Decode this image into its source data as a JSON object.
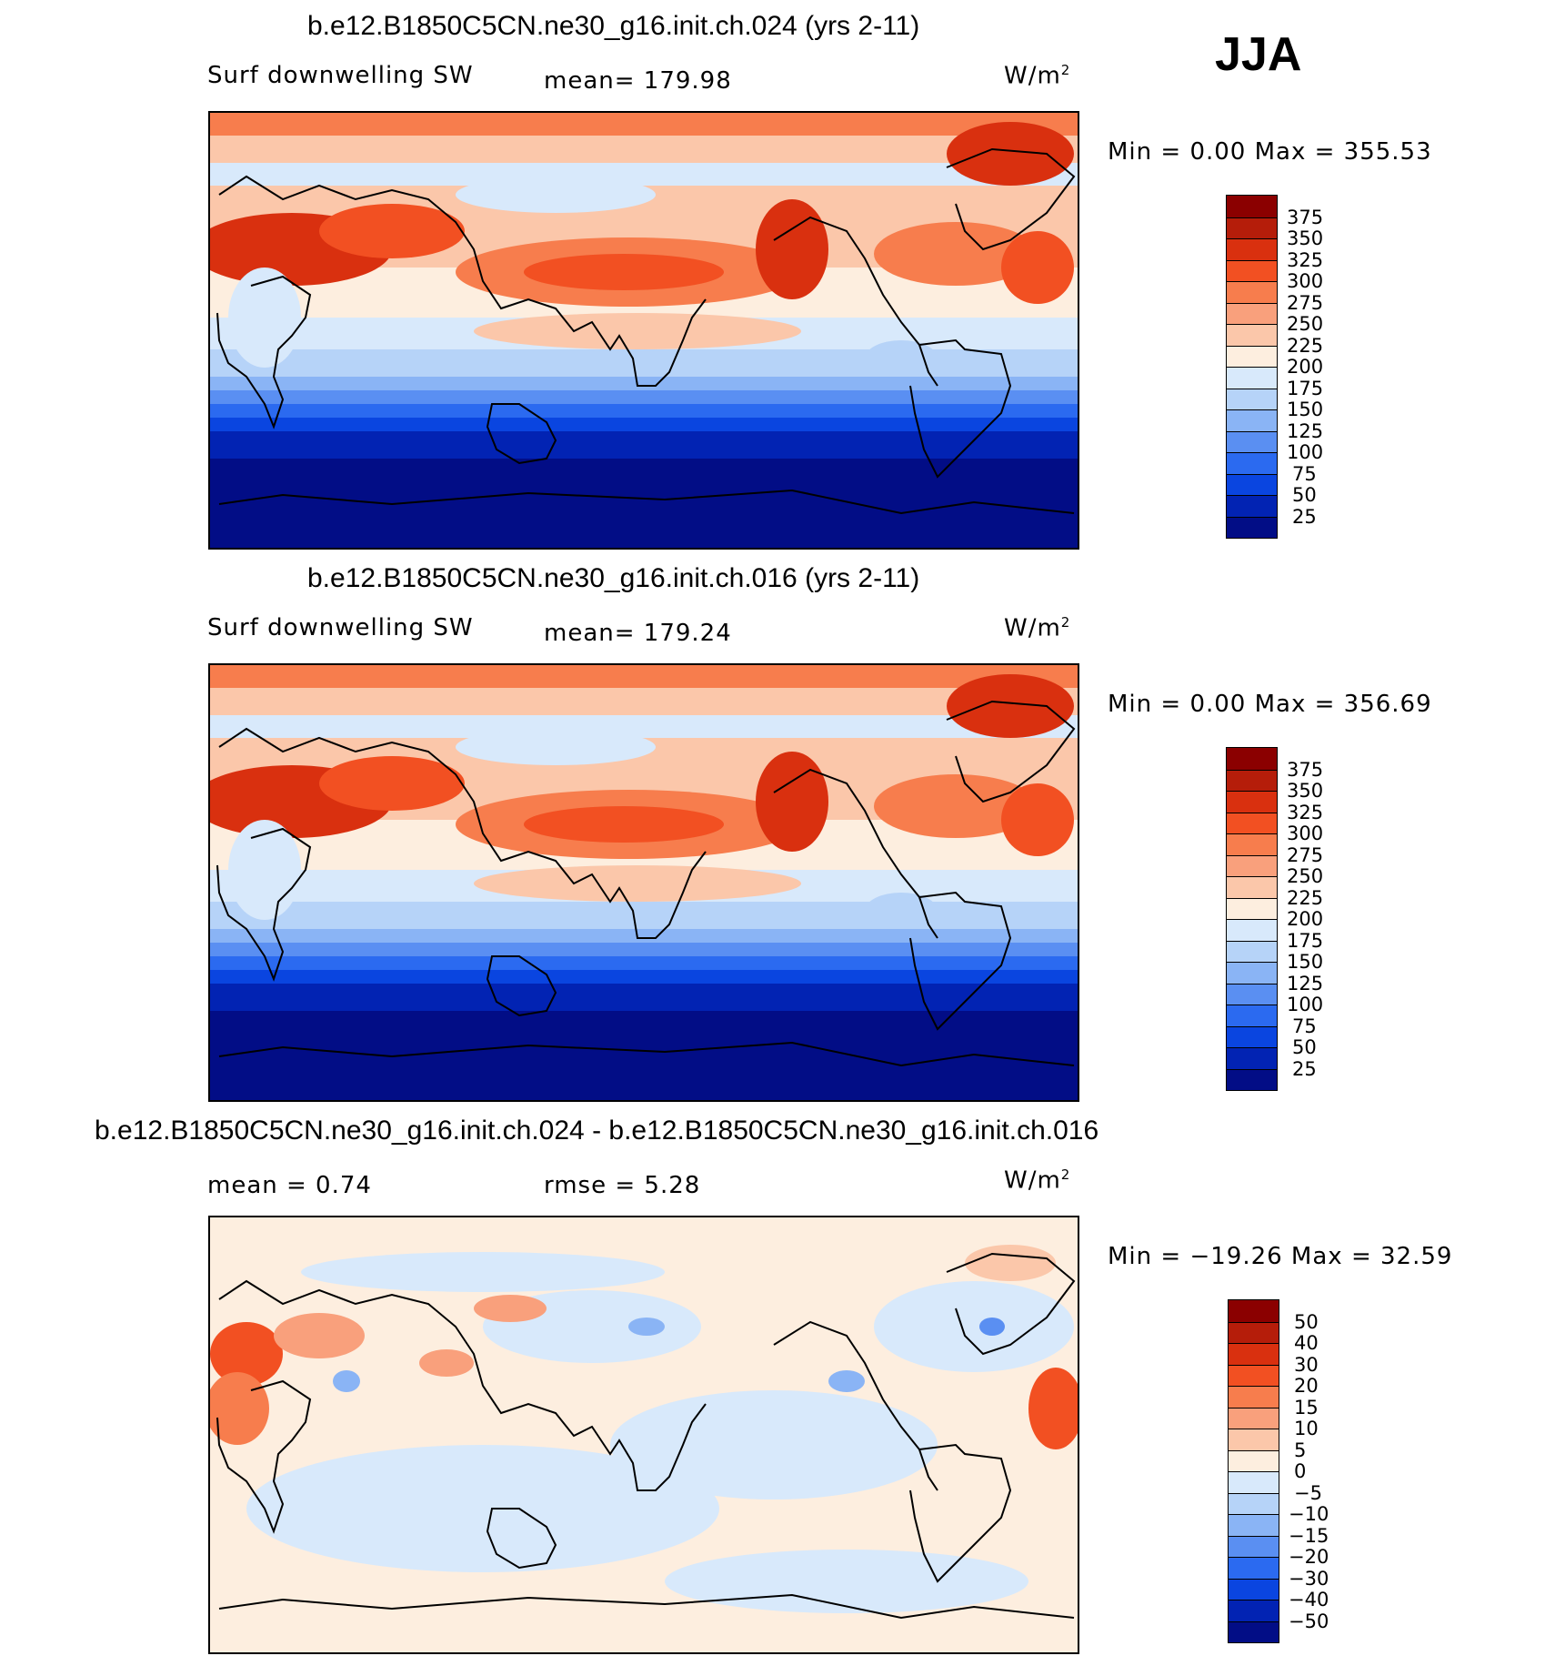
{
  "season": "JJA",
  "panels": [
    {
      "title": "b.e12.B1850C5CN.ne30_g16.init.ch.024 (yrs 2-11)",
      "variable": "Surf downwelling SW",
      "stat": "mean=  179.98",
      "units": "W/m",
      "units_sup": "2",
      "minmax": "Min =     0.00  Max  =  355.53",
      "map_kind": "field"
    },
    {
      "title": "b.e12.B1850C5CN.ne30_g16.init.ch.016 (yrs 2-11)",
      "variable": "Surf downwelling SW",
      "stat": "mean=  179.24",
      "units": "W/m",
      "units_sup": "2",
      "minmax": "Min =     0.00  Max  =  356.69",
      "map_kind": "field"
    },
    {
      "title": "b.e12.B1850C5CN.ne30_g16.init.ch.024 - b.e12.B1850C5CN.ne30_g16.init.ch.016",
      "variable": "mean =     0.74",
      "stat": "rmse =     5.28",
      "units": "W/m",
      "units_sup": "2",
      "minmax": "Min =  −19.26  Max  =    32.59",
      "map_kind": "diff"
    }
  ],
  "colorbars": {
    "field": {
      "labels": [
        "375",
        "350",
        "325",
        "300",
        "275",
        "250",
        "225",
        "200",
        "175",
        "150",
        "125",
        "100",
        "75",
        "50",
        "25"
      ],
      "colors": [
        "#8b0000",
        "#b51d0a",
        "#d9300f",
        "#f25022",
        "#f77d4d",
        "#f9a07c",
        "#fbc7aa",
        "#fdeedf",
        "#d8e9fb",
        "#b6d3f8",
        "#8ab4f5",
        "#5a8ff2",
        "#2b6af0",
        "#0a45e0",
        "#0223b3",
        "#020d86"
      ]
    },
    "diff": {
      "labels": [
        "50",
        "40",
        "30",
        "20",
        "15",
        "10",
        "5",
        "0",
        "−5",
        "−10",
        "−15",
        "−20",
        "−30",
        "−40",
        "−50"
      ],
      "colors": [
        "#8b0000",
        "#b51d0a",
        "#d9300f",
        "#f25022",
        "#f77d4d",
        "#f9a07c",
        "#fbc7aa",
        "#fdeedf",
        "#d8e9fb",
        "#b6d3f8",
        "#8ab4f5",
        "#5a8ff2",
        "#2b6af0",
        "#0a45e0",
        "#0223b3",
        "#020d86"
      ]
    }
  }
}
